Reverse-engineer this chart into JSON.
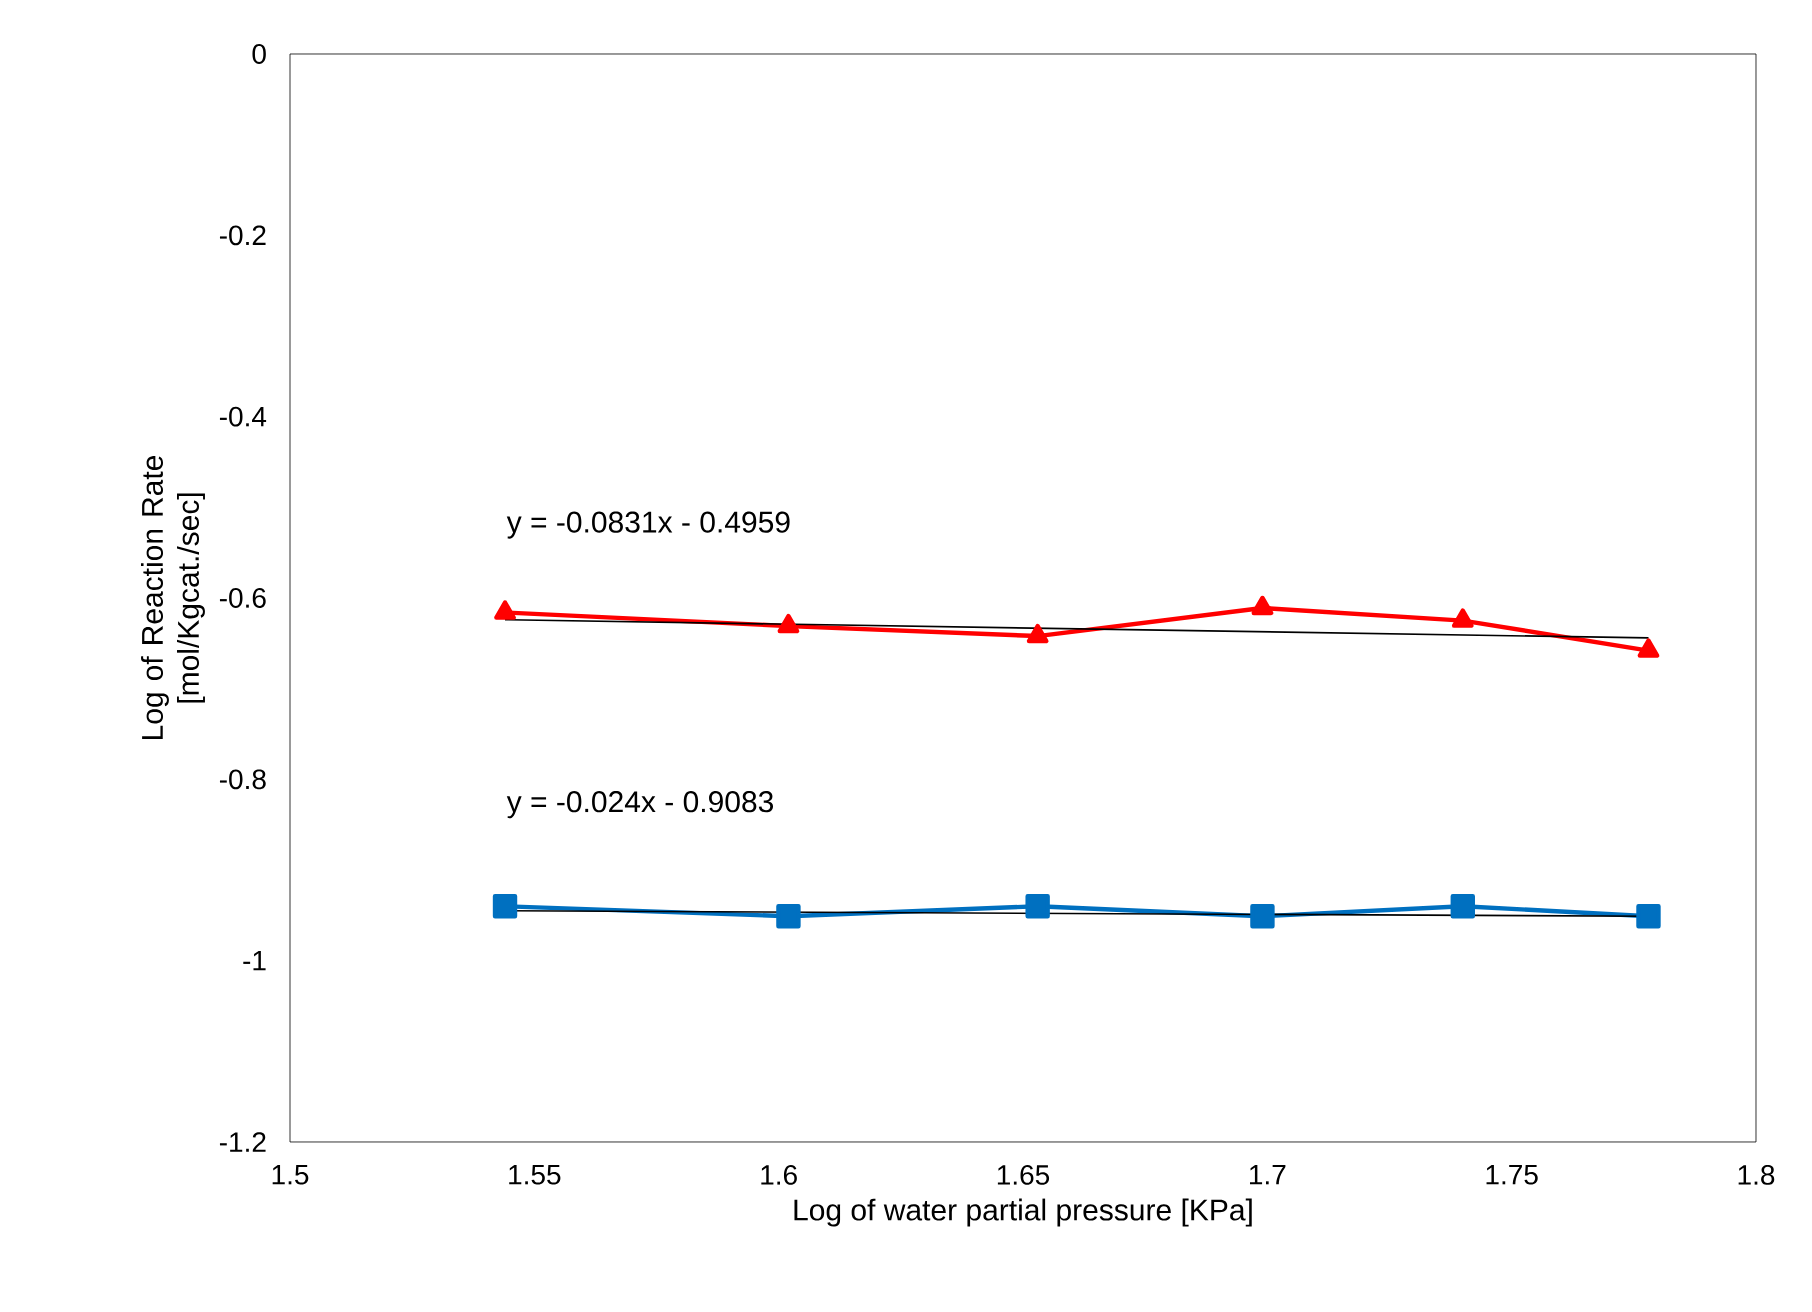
{
  "chart_data": {
    "type": "line",
    "xlabel": "Log of water partial pressure [KPa]",
    "ylabel": "Log of Reaction Rate [mol/Kgcat./sec]",
    "series": [
      {
        "color": "#ff0000",
        "marker": "triangle",
        "x": [
          1.544,
          1.602,
          1.653,
          1.699,
          1.74,
          1.778
        ],
        "values": [
          -0.616,
          -0.631,
          -0.642,
          -0.611,
          -0.625,
          -0.658
        ]
      },
      {
        "color": "#0070c0",
        "marker": "square",
        "x": [
          1.544,
          1.602,
          1.653,
          1.699,
          1.74,
          1.778
        ],
        "values": [
          -0.94,
          -0.951,
          -0.94,
          -0.951,
          -0.94,
          -0.951
        ]
      },
      {
        "color": "#000000",
        "marker": "none",
        "x": [
          1.544,
          1.778
        ],
        "values": [
          -0.624,
          -0.644
        ]
      },
      {
        "color": "#000000",
        "marker": "none",
        "x": [
          1.544,
          1.778
        ],
        "values": [
          -0.945,
          -0.951
        ]
      }
    ],
    "annotations": [
      "y = -0.0831x - 0.4959",
      "y = -0.024x - 0.9083"
    ],
    "xlim": [
      1.5,
      1.8
    ],
    "ylim": [
      -1.2,
      0
    ],
    "xticks": [
      {
        "value": 1.5,
        "label": "1.5"
      },
      {
        "value": 1.55,
        "label": "1.55"
      },
      {
        "value": 1.6,
        "label": "1.6"
      },
      {
        "value": 1.65,
        "label": "1.65"
      },
      {
        "value": 1.7,
        "label": "1.7"
      },
      {
        "value": 1.75,
        "label": "1.75"
      },
      {
        "value": 1.8,
        "label": "1.8"
      }
    ],
    "yticks": [
      {
        "value": -1.2,
        "label": "-1.2"
      },
      {
        "value": -1,
        "label": "-1"
      },
      {
        "value": -0.8,
        "label": "-0.8"
      },
      {
        "value": -0.6,
        "label": "-0.6"
      },
      {
        "value": -0.4,
        "label": "-0.4"
      },
      {
        "value": -0.2,
        "label": "-0.2"
      },
      {
        "value": 0,
        "label": "0"
      }
    ],
    "line_style": "solid"
  }
}
